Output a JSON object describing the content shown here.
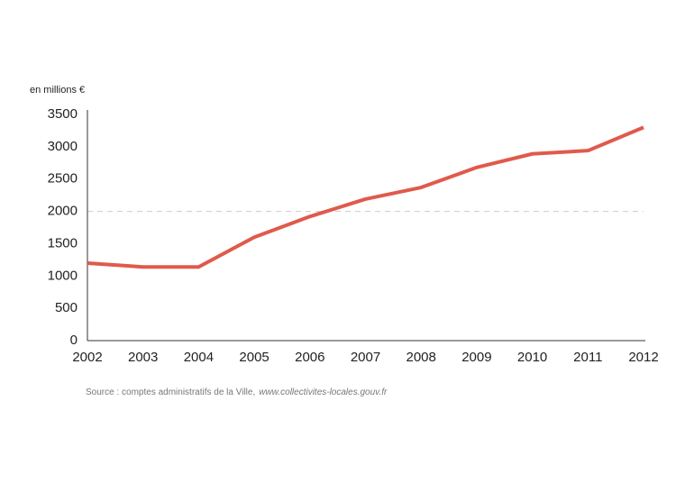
{
  "chart_data": {
    "type": "line",
    "y_label": "en millions €",
    "x": [
      2002,
      2003,
      2004,
      2005,
      2006,
      2007,
      2008,
      2009,
      2010,
      2011,
      2012
    ],
    "xlim": [
      2002,
      2012
    ],
    "series": [
      {
        "color": "#e05a4b",
        "values": [
          1200,
          1140,
          1140,
          1600,
          1920,
          2190,
          2370,
          2680,
          2890,
          2940,
          3300
        ]
      }
    ],
    "ylim": [
      0,
      3500
    ],
    "yticks": [
      0,
      500,
      1000,
      1500,
      2000,
      2500,
      3000,
      3500
    ],
    "reference_line": 2000,
    "source": {
      "text": "Source : comptes administratifs de la Ville,",
      "link": "www.collectivites-locales.gouv.fr"
    }
  }
}
